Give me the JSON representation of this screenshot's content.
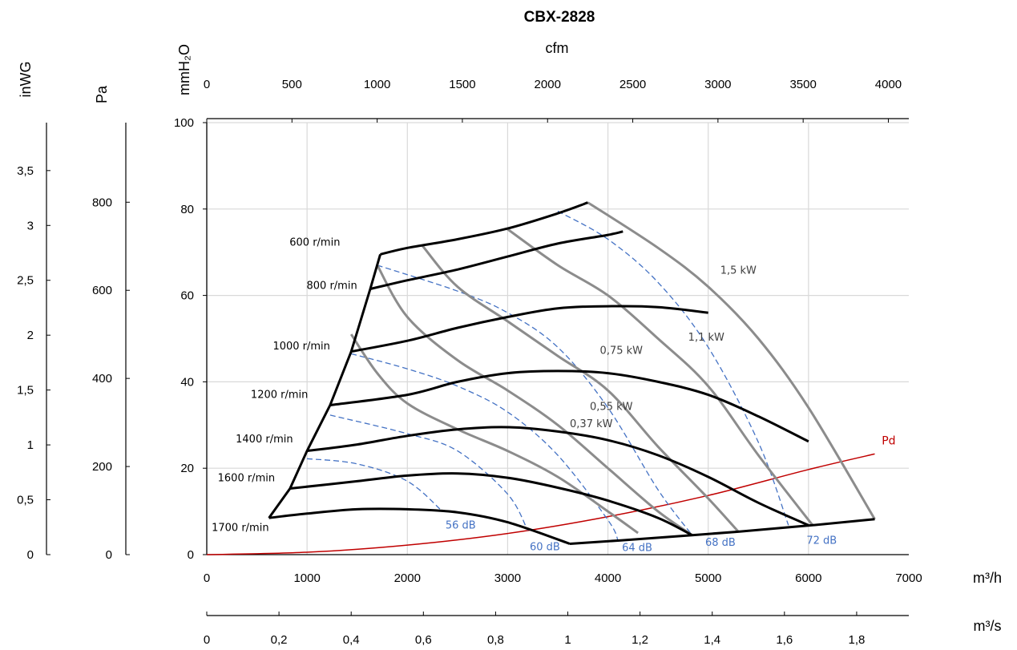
{
  "chart_data": {
    "type": "line",
    "title": "CBX-2828",
    "x_axis": {
      "label": "m³/h",
      "range": [
        0,
        7000
      ],
      "ticks": [
        0,
        1000,
        2000,
        3000,
        4000,
        5000,
        6000,
        7000
      ],
      "tick_labels": [
        "0",
        "1000",
        "2000",
        "3000",
        "4000",
        "5000",
        "6000",
        "7000"
      ]
    },
    "x_axis_cfm": {
      "label": "cfm",
      "ticks": [
        0,
        500,
        1000,
        1500,
        2000,
        2500,
        3000,
        3500,
        4000
      ],
      "tick_labels": [
        "0",
        "500",
        "1000",
        "1500",
        "2000",
        "2500",
        "3000",
        "3500",
        "4000"
      ]
    },
    "x_axis_m3s": {
      "label": "m³/s",
      "ticks": [
        0,
        0.2,
        0.4,
        0.6,
        0.8,
        1.0,
        1.2,
        1.4,
        1.6,
        1.8
      ],
      "tick_labels": [
        "0",
        "0,2",
        "0,4",
        "0,6",
        "0,8",
        "1",
        "1,2",
        "1,4",
        "1,6",
        "1,8"
      ]
    },
    "y_axis": {
      "label": "mmH₂O",
      "range": [
        0,
        100
      ],
      "ticks": [
        0,
        20,
        40,
        60,
        80,
        100
      ],
      "tick_labels": [
        "0",
        "20",
        "40",
        "60",
        "80",
        "100"
      ]
    },
    "y_axis_pa": {
      "label": "Pa",
      "ticks": [
        0,
        200,
        400,
        600,
        800
      ],
      "tick_labels": [
        "0",
        "200",
        "400",
        "600",
        "800"
      ]
    },
    "y_axis_inwg": {
      "label": "inWG",
      "ticks": [
        0,
        0.5,
        1,
        1.5,
        2,
        2.5,
        3,
        3.5
      ],
      "tick_labels": [
        "0",
        "0,5",
        "1",
        "1,5",
        "2",
        "2,5",
        "3",
        "3,5"
      ]
    },
    "grid": true,
    "speed_curves": [
      {
        "label": "600 r/min",
        "points": [
          [
            620,
            8.5
          ],
          [
            1000,
            9.5
          ],
          [
            1500,
            10.5
          ],
          [
            2000,
            10.5
          ],
          [
            2500,
            9.8
          ],
          [
            3000,
            7.5
          ],
          [
            3620,
            2.5
          ]
        ]
      },
      {
        "label": "800 r/min",
        "points": [
          [
            830,
            15.3
          ],
          [
            1500,
            17
          ],
          [
            2000,
            18.3
          ],
          [
            2500,
            18.8
          ],
          [
            3000,
            17.8
          ],
          [
            3500,
            15.5
          ],
          [
            4000,
            12.5
          ],
          [
            4500,
            8.5
          ],
          [
            4840,
            4.5
          ]
        ]
      },
      {
        "label": "1000 r/min",
        "points": [
          [
            1000,
            24
          ],
          [
            1500,
            25.5
          ],
          [
            2000,
            27.5
          ],
          [
            2500,
            29
          ],
          [
            3000,
            29.5
          ],
          [
            3500,
            28.5
          ],
          [
            4000,
            26.5
          ],
          [
            4500,
            23
          ],
          [
            5000,
            18
          ],
          [
            5500,
            12
          ],
          [
            6000,
            6.8
          ]
        ]
      },
      {
        "label": "1200 r/min",
        "points": [
          [
            1230,
            34.6
          ],
          [
            2000,
            37
          ],
          [
            2500,
            40
          ],
          [
            3000,
            42
          ],
          [
            3500,
            42.5
          ],
          [
            4000,
            42
          ],
          [
            4500,
            40
          ],
          [
            5000,
            37
          ],
          [
            5500,
            32
          ],
          [
            6000,
            26.2
          ]
        ]
      },
      {
        "label": "1400 r/min",
        "points": [
          [
            1440,
            47
          ],
          [
            2000,
            49.5
          ],
          [
            2500,
            52.5
          ],
          [
            3000,
            55
          ],
          [
            3500,
            57
          ],
          [
            4000,
            57.5
          ],
          [
            4500,
            57.3
          ],
          [
            5000,
            56
          ]
        ]
      },
      {
        "label": "1600 r/min",
        "points": [
          [
            1630,
            61.5
          ],
          [
            2000,
            63.5
          ],
          [
            2500,
            66
          ],
          [
            3000,
            69
          ],
          [
            3500,
            72
          ],
          [
            4000,
            74
          ],
          [
            4150,
            74.8
          ]
        ]
      },
      {
        "label": "1700 r/min",
        "points": [
          [
            1730,
            69.5
          ],
          [
            2000,
            71
          ],
          [
            2500,
            73
          ],
          [
            3000,
            75.5
          ],
          [
            3500,
            79
          ],
          [
            3800,
            81.5
          ]
        ]
      }
    ],
    "boundary_curves": [
      {
        "name": "left",
        "points": [
          [
            620,
            8.5
          ],
          [
            830,
            15.3
          ],
          [
            1000,
            24
          ],
          [
            1230,
            34.6
          ],
          [
            1440,
            47
          ],
          [
            1630,
            61.5
          ],
          [
            1730,
            69.5
          ]
        ]
      },
      {
        "name": "bottom",
        "points": [
          [
            3620,
            2.5
          ],
          [
            4130,
            3.3
          ],
          [
            4840,
            4.5
          ],
          [
            5300,
            5.3
          ],
          [
            6040,
            6.8
          ],
          [
            6660,
            8.2
          ]
        ]
      }
    ],
    "power_curves": [
      {
        "label": "0,37 kW",
        "points": [
          [
            1440,
            51
          ],
          [
            1700,
            42
          ],
          [
            2000,
            35
          ],
          [
            2500,
            29
          ],
          [
            3000,
            24
          ],
          [
            3500,
            18
          ],
          [
            4000,
            10
          ],
          [
            4300,
            5
          ]
        ]
      },
      {
        "label": "0,55 kW",
        "points": [
          [
            1700,
            67
          ],
          [
            2000,
            55
          ],
          [
            2500,
            45
          ],
          [
            3000,
            38
          ],
          [
            3500,
            30
          ],
          [
            4000,
            20
          ],
          [
            4500,
            10
          ],
          [
            4840,
            4.5
          ]
        ]
      },
      {
        "label": "0,75 kW",
        "points": [
          [
            2150,
            71.5
          ],
          [
            2500,
            62
          ],
          [
            3000,
            54
          ],
          [
            3500,
            46
          ],
          [
            4000,
            38
          ],
          [
            4500,
            25
          ],
          [
            5000,
            13
          ],
          [
            5300,
            5.3
          ]
        ]
      },
      {
        "label": "1,1 kW",
        "points": [
          [
            2990,
            75.5
          ],
          [
            3500,
            67
          ],
          [
            4000,
            60
          ],
          [
            4500,
            50
          ],
          [
            5000,
            39
          ],
          [
            5500,
            23
          ],
          [
            6040,
            6.8
          ]
        ]
      },
      {
        "label": "1,5 kW",
        "points": [
          [
            3800,
            81.5
          ],
          [
            4500,
            71
          ],
          [
            5000,
            62
          ],
          [
            5500,
            50
          ],
          [
            6000,
            34
          ],
          [
            6660,
            8.2
          ]
        ]
      }
    ],
    "db_curves": [
      {
        "label": "56 dB",
        "points": [
          [
            1000,
            22.2
          ],
          [
            1500,
            21
          ],
          [
            2000,
            17
          ],
          [
            2350,
            10
          ]
        ]
      },
      {
        "label": "60 dB",
        "points": [
          [
            1230,
            32.3
          ],
          [
            2000,
            28
          ],
          [
            2500,
            24
          ],
          [
            3000,
            14
          ],
          [
            3200,
            5.6
          ]
        ]
      },
      {
        "label": "64 dB",
        "points": [
          [
            1440,
            46.5
          ],
          [
            2000,
            43
          ],
          [
            2500,
            39
          ],
          [
            3000,
            33
          ],
          [
            3500,
            23
          ],
          [
            4000,
            8
          ],
          [
            4100,
            3.3
          ]
        ]
      },
      {
        "label": "68 dB",
        "points": [
          [
            1700,
            67
          ],
          [
            2500,
            61
          ],
          [
            3000,
            56
          ],
          [
            3500,
            48
          ],
          [
            4000,
            34
          ],
          [
            4500,
            15
          ],
          [
            4840,
            4.5
          ]
        ]
      },
      {
        "label": "72 dB",
        "points": [
          [
            3500,
            79.5
          ],
          [
            4000,
            73
          ],
          [
            4500,
            63
          ],
          [
            5000,
            48
          ],
          [
            5500,
            26
          ],
          [
            5800,
            6.8
          ]
        ]
      }
    ],
    "pd_curve": {
      "label": "Pd",
      "points": [
        [
          0,
          0
        ],
        [
          1000,
          0.55
        ],
        [
          2000,
          2.2
        ],
        [
          3000,
          4.9
        ],
        [
          4000,
          8.8
        ],
        [
          5000,
          13.7
        ],
        [
          6000,
          19.7
        ],
        [
          6660,
          23.3
        ]
      ]
    },
    "speed_label_positions": [
      [
        1330,
        71.5
      ],
      [
        1500,
        61.5
      ],
      [
        1230,
        47.5
      ],
      [
        1010,
        36.3
      ],
      [
        860,
        26
      ],
      [
        680,
        17
      ],
      [
        620,
        5.5
      ]
    ],
    "power_label_positions": [
      [
        3620,
        29.5
      ],
      [
        3820,
        33.5
      ],
      [
        3920,
        46.5
      ],
      [
        4800,
        49.5
      ],
      [
        5120,
        65
      ]
    ],
    "db_label_positions": [
      [
        2380,
        6
      ],
      [
        3220,
        1
      ],
      [
        4140,
        0.8
      ],
      [
        4970,
        2
      ],
      [
        5980,
        2.5
      ]
    ],
    "pd_label_position": [
      6730,
      25.5
    ]
  }
}
